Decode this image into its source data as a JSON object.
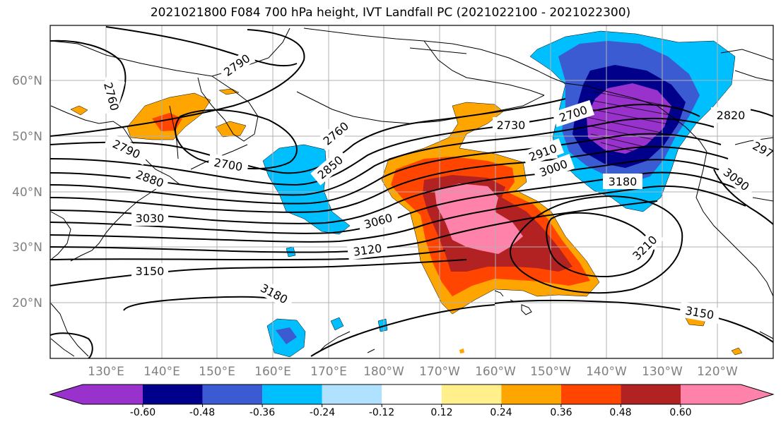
{
  "title": "2021021800 F084 700 hPa height, IVT Landfall PC (2021022100 - 2021022300)",
  "lat_labels": [
    "60°N",
    "50°N",
    "40°N",
    "30°N",
    "20°N"
  ],
  "lon_labels": [
    "130°E",
    "140°E",
    "150°E",
    "160°E",
    "170°E",
    "180°W",
    "170°W",
    "160°W",
    "150°W",
    "140°W",
    "130°W",
    "120°W"
  ],
  "contour_labels": [
    "2790",
    "2760",
    "2790",
    "2880",
    "3030",
    "2700",
    "2760",
    "2850",
    "2730",
    "2700",
    "2910",
    "3000",
    "3060",
    "3120",
    "3150",
    "3180",
    "3180",
    "3090",
    "2820",
    "297",
    "3210",
    "3150"
  ],
  "colorbar": {
    "colors": [
      "#9932cc",
      "#00008b",
      "#3a5bd1",
      "#00bfff",
      "#b0e2ff",
      "#ffffff",
      "#fff08c",
      "#ffa500",
      "#ff4500",
      "#b22222",
      "#ff82ab"
    ],
    "tick_labels": [
      "-0.60",
      "-0.48",
      "-0.36",
      "-0.24",
      "-0.12",
      "0.12",
      "0.24",
      "0.36",
      "0.48",
      "0.60"
    ]
  },
  "map": {
    "lon_range": [
      "120°E",
      "110°W"
    ],
    "lat_range": [
      "10°N",
      "70°N"
    ],
    "shading": "IVT landfall PC",
    "contours": "700 hPa height"
  }
}
